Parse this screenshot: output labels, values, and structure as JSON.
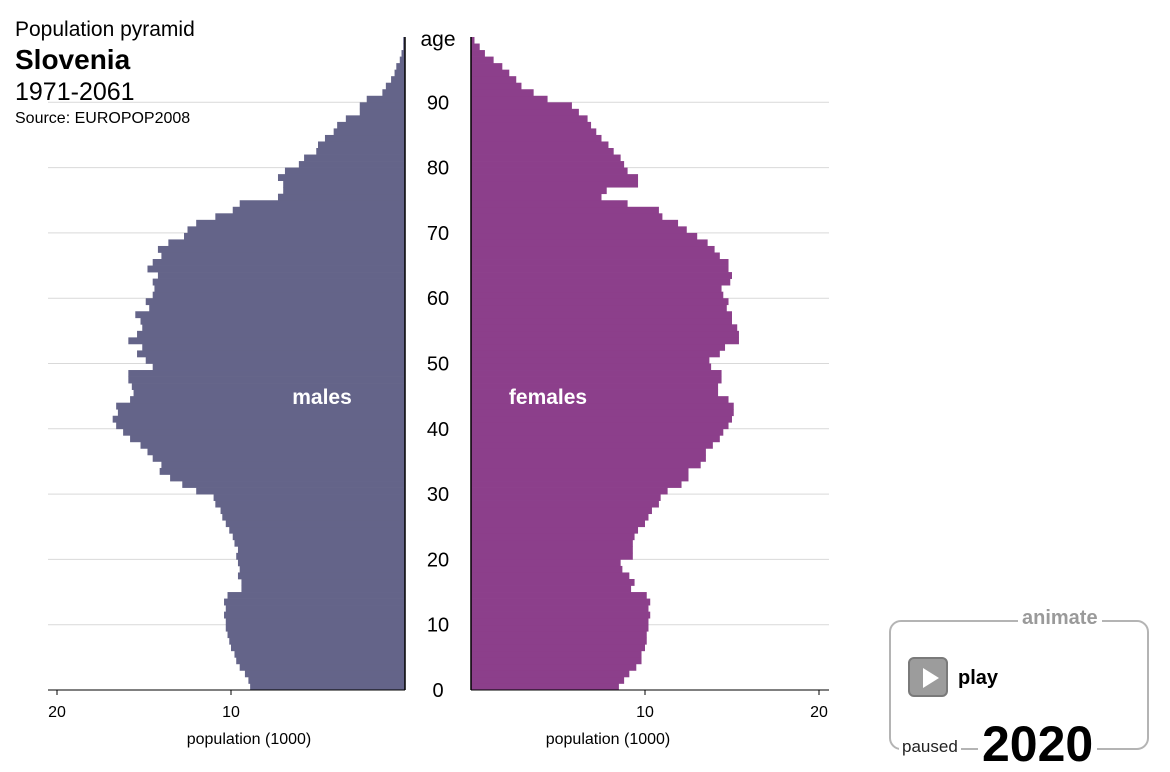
{
  "header": {
    "label": "Population pyramid",
    "country": "Slovenia",
    "range": "1971-2061",
    "source": "Source: EUROPOP2008"
  },
  "controls": {
    "animate_label": "animate",
    "play_label": "play",
    "status": "paused",
    "year": "2020",
    "play_icon": "play-icon"
  },
  "chart_data": {
    "type": "bar",
    "orientation": "horizontal-pyramid",
    "year": "2020",
    "axis_title": "age",
    "age_ticks": [
      "0",
      "10",
      "20",
      "30",
      "40",
      "50",
      "60",
      "70",
      "80",
      "90"
    ],
    "age_range": [
      0,
      99
    ],
    "x_label_left": "population (1000)",
    "x_label_right": "population (1000)",
    "x_ticks": [
      "20",
      "10",
      "10",
      "20"
    ],
    "xlim": [
      0,
      20
    ],
    "grid": true,
    "colors": {
      "males": "#646489",
      "females": "#8c3f8b",
      "grid": "#d9d9d9"
    },
    "series": [
      {
        "name": "males",
        "label": "males",
        "values": [
          8.9,
          9.0,
          9.2,
          9.5,
          9.7,
          9.8,
          10.0,
          10.1,
          10.2,
          10.3,
          10.3,
          10.4,
          10.3,
          10.4,
          10.2,
          9.4,
          9.4,
          9.6,
          9.5,
          9.6,
          9.7,
          9.6,
          9.8,
          9.9,
          10.1,
          10.3,
          10.5,
          10.6,
          10.9,
          11.0,
          12.0,
          12.8,
          13.5,
          14.1,
          14.0,
          14.5,
          14.8,
          15.2,
          15.8,
          16.2,
          16.6,
          16.8,
          16.5,
          16.6,
          15.8,
          15.6,
          15.7,
          15.9,
          15.9,
          14.5,
          14.9,
          15.4,
          15.1,
          15.9,
          15.4,
          15.1,
          15.2,
          15.5,
          14.7,
          14.9,
          14.5,
          14.4,
          14.5,
          14.2,
          14.8,
          14.5,
          14.0,
          14.2,
          13.6,
          12.7,
          12.5,
          12.0,
          10.9,
          9.9,
          9.5,
          7.3,
          7.0,
          7.0,
          7.3,
          6.9,
          6.1,
          5.8,
          5.1,
          5.0,
          4.6,
          4.1,
          3.9,
          3.4,
          2.6,
          2.6,
          2.2,
          1.3,
          1.1,
          0.8,
          0.6,
          0.5,
          0.3,
          0.2,
          0.1,
          0.1
        ]
      },
      {
        "name": "females",
        "label": "females",
        "values": [
          8.5,
          8.8,
          9.1,
          9.5,
          9.8,
          9.8,
          10.0,
          10.1,
          10.1,
          10.2,
          10.2,
          10.3,
          10.2,
          10.3,
          10.1,
          9.2,
          9.4,
          9.1,
          8.7,
          8.6,
          9.3,
          9.3,
          9.3,
          9.4,
          9.6,
          10.0,
          10.2,
          10.4,
          10.8,
          10.9,
          11.3,
          12.1,
          12.5,
          12.5,
          13.2,
          13.5,
          13.5,
          13.9,
          14.3,
          14.5,
          14.8,
          15.0,
          15.1,
          15.1,
          14.8,
          14.2,
          14.2,
          14.4,
          14.4,
          13.8,
          13.7,
          14.3,
          14.6,
          15.4,
          15.4,
          15.3,
          15.0,
          15.0,
          14.7,
          14.8,
          14.5,
          14.4,
          14.9,
          15.0,
          14.8,
          14.8,
          14.3,
          14.0,
          13.6,
          13.0,
          12.4,
          11.9,
          11.0,
          10.8,
          9.0,
          7.5,
          7.8,
          9.6,
          9.6,
          9.0,
          8.8,
          8.6,
          8.2,
          7.9,
          7.5,
          7.2,
          6.9,
          6.7,
          6.2,
          5.8,
          4.4,
          3.6,
          2.9,
          2.6,
          2.2,
          1.8,
          1.3,
          0.8,
          0.5,
          0.2
        ]
      }
    ]
  }
}
